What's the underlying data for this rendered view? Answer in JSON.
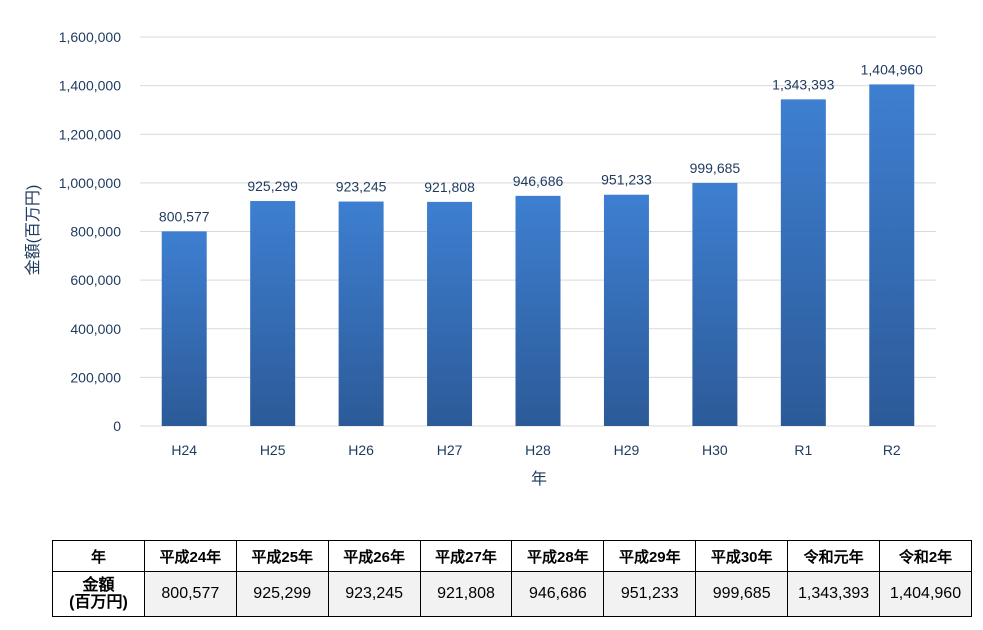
{
  "chart_data": {
    "type": "bar",
    "categories": [
      "H24",
      "H25",
      "H26",
      "H27",
      "H28",
      "H29",
      "H30",
      "R1",
      "R2"
    ],
    "values": [
      800577,
      925299,
      923245,
      921808,
      946686,
      951233,
      999685,
      1343393,
      1404960
    ],
    "data_labels": [
      "800,577",
      "925,299",
      "923,245",
      "921,808",
      "946,686",
      "951,233",
      "999,685",
      "1,343,393",
      "1,404,960"
    ],
    "xlabel": "年",
    "ylabel": "金額(百万円)",
    "yticks": [
      "0",
      "200,000",
      "400,000",
      "600,000",
      "800,000",
      "1,000,000",
      "1,200,000",
      "1,400,000",
      "1,600,000"
    ],
    "ylim": [
      0,
      1600000
    ],
    "grid": true,
    "colors": {
      "bar_top": "#3e7fd1",
      "bar_bottom": "#2c5a98",
      "grid": "#d9d9d9",
      "text": "#1f3a5f"
    }
  },
  "table": {
    "header_label": "年",
    "row_label_line1": "金額",
    "row_label_line2": "(百万円)",
    "columns": [
      "平成24年",
      "平成25年",
      "平成26年",
      "平成27年",
      "平成28年",
      "平成29年",
      "平成30年",
      "令和元年",
      "令和2年"
    ],
    "values": [
      "800,577",
      "925,299",
      "923,245",
      "921,808",
      "946,686",
      "951,233",
      "999,685",
      "1,343,393",
      "1,404,960"
    ]
  }
}
